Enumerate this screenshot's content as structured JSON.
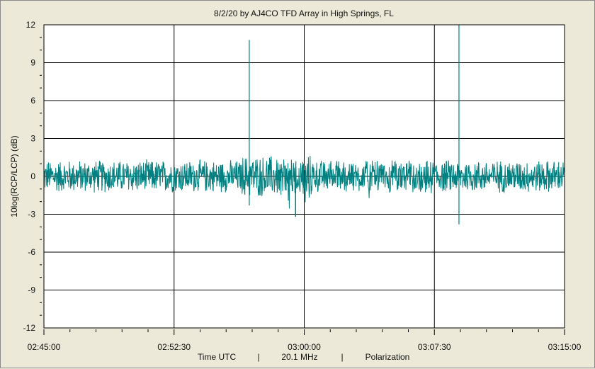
{
  "chart_data": {
    "type": "line",
    "title": "8/2/20  by  AJ4CO TFD Array  in  High Springs, FL",
    "ylabel": "10log(RCP/LCP) (dB)",
    "footer": [
      "Time UTC",
      "|",
      "20.1 MHz",
      "|",
      "Polarization"
    ],
    "ylim": [
      -12,
      12
    ],
    "xlim": [
      "02:45:00",
      "03:15:00"
    ],
    "yticks": [
      12,
      9,
      6,
      3,
      0,
      -3,
      -6,
      -9,
      -12
    ],
    "xticks": [
      "02:45:00",
      "02:52:30",
      "03:00:00",
      "03:07:30",
      "03:15:00"
    ],
    "grid": true,
    "colors": {
      "series": "#008080",
      "plot_bg": "#ffffff",
      "grid": "#000000"
    },
    "series": [
      {
        "values_summary": "noise around 0 dB, typical envelope about -1.5 to +1.5 dB",
        "x": [
          "02:45:00",
          "02:52:30",
          "02:56:50",
          "02:56:51",
          "02:59:30",
          "02:59:31",
          "03:08:55",
          "03:08:56",
          "03:15:00"
        ],
        "y": [
          0.3,
          0.0,
          10.8,
          -2.3,
          -3.2,
          0.0,
          12.0,
          -3.8,
          0.2
        ]
      }
    ]
  }
}
